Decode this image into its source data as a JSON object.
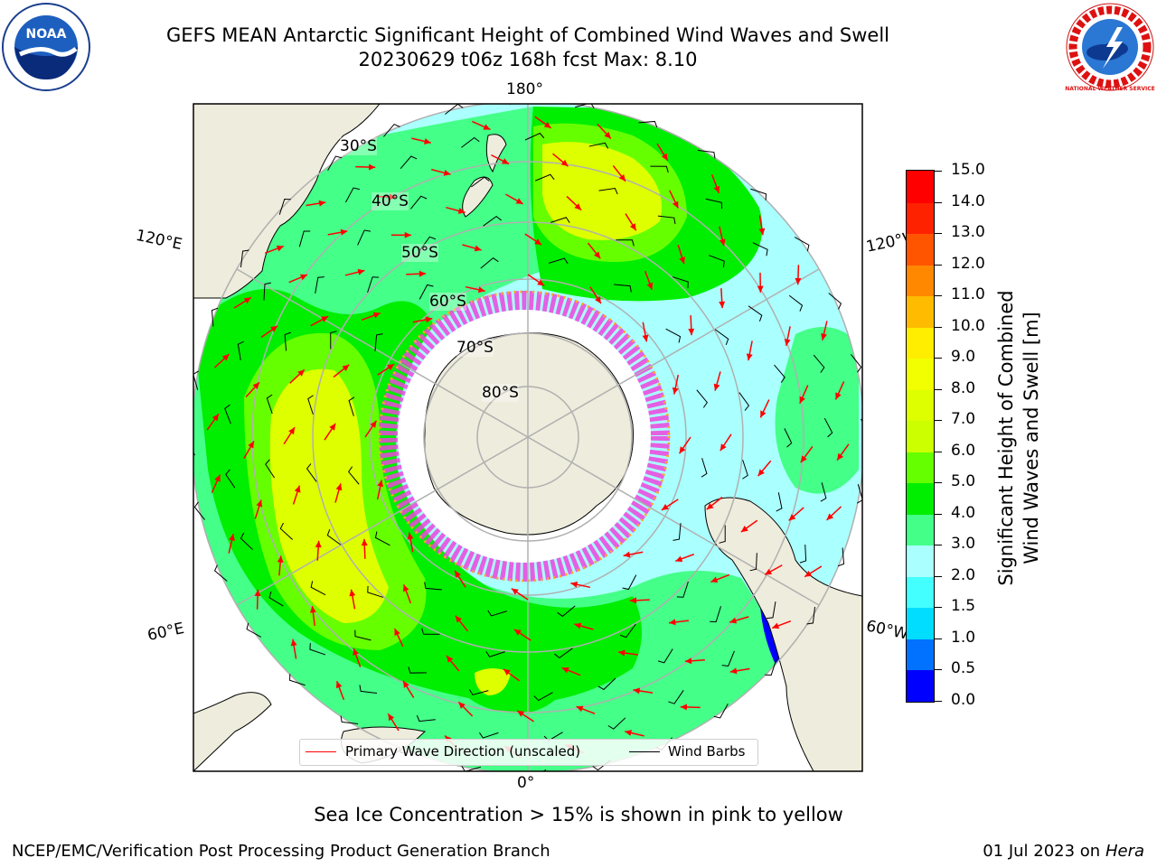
{
  "header": {
    "title_line1": "GEFS MEAN Antarctic Significant Height of Combined Wind Waves and Swell",
    "title_line2": "20230629 t06z 168h fcst   Max: 8.10"
  },
  "logos": {
    "left": "noaa-logo",
    "right": "national-weather-service-logo",
    "left_text": "NOAA",
    "right_text": "NATIONAL WEATHER SERVICE"
  },
  "map": {
    "projection": "south-polar-stereographic",
    "longitude_labels": {
      "top": "180°",
      "bottom": "0°",
      "upper_left": "120°E",
      "lower_left": "60°E",
      "upper_right": "120°W",
      "lower_right": "60°W"
    },
    "latitude_labels": [
      "30°S",
      "40°S",
      "50°S",
      "60°S",
      "70°S",
      "80°S"
    ],
    "colors": {
      "land": "#eeecdc",
      "ice_sheet": "#ffffff",
      "sea_ice": "#ee44dd",
      "wave_arrow": "#ff0000",
      "wind_barb": "#000000",
      "grid": "#b0b0b0"
    }
  },
  "legend": {
    "wave_label": "Primary Wave Direction (unscaled)",
    "wind_label": "Wind Barbs"
  },
  "colorbar": {
    "title_line1": "Significant Height of Combined",
    "title_line2": "Wind Waves and Swell [m]",
    "min": 0.0,
    "max": 15.0,
    "ticks": [
      "0.0",
      "0.5",
      "1.0",
      "1.5",
      "2.0",
      "3.0",
      "4.0",
      "5.0",
      "6.0",
      "7.0",
      "8.0",
      "9.0",
      "10.0",
      "11.0",
      "12.0",
      "13.0",
      "14.0",
      "15.0"
    ],
    "colors": [
      "#0000ff",
      "#0072ff",
      "#00ddff",
      "#44ffff",
      "#aaffff",
      "#44ff88",
      "#00ee00",
      "#66ff00",
      "#ccff00",
      "#ddff00",
      "#f2ff00",
      "#ffee00",
      "#ffbb00",
      "#ff8800",
      "#ff5500",
      "#ff2200",
      "#ff0000"
    ]
  },
  "subtitle": "Sea Ice Concentration > 15% is shown in pink to yellow",
  "footer": {
    "left": "NCEP/EMC/Verification Post Processing Product Generation Branch",
    "right_date": "01 Jul 2023 on ",
    "right_host": "Hera"
  }
}
